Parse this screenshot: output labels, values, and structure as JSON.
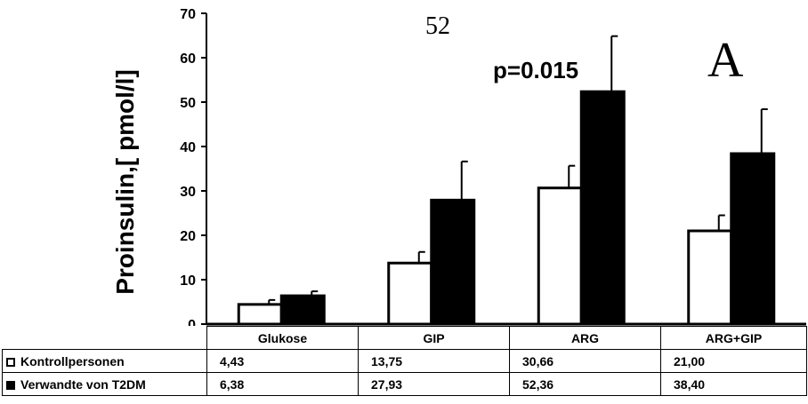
{
  "chart_data": {
    "type": "bar",
    "title": "",
    "ylabel": "Proinsulin,[ pmol/l]",
    "ylim": [
      0,
      70
    ],
    "yticks": [
      "0",
      "10",
      "20",
      "30",
      "40",
      "50",
      "60",
      "70"
    ],
    "categories": [
      "Glukose",
      "GIP",
      "ARG",
      "ARG+GIP"
    ],
    "series": [
      {
        "name": "Kontrollpersonen",
        "color": "#ffffff",
        "values": [
          4.43,
          13.75,
          30.66,
          21.0
        ],
        "errors": [
          1.0,
          2.5,
          5.0,
          3.5
        ],
        "labels": [
          "4,43",
          "13,75",
          "30,66",
          "21,00"
        ]
      },
      {
        "name": "Verwandte von T2DM",
        "color": "#000000",
        "values": [
          6.38,
          27.93,
          52.36,
          38.4
        ],
        "errors": [
          1.0,
          8.7,
          12.5,
          10.0
        ],
        "labels": [
          "6,38",
          "27,93",
          "52,36",
          "38,40"
        ]
      }
    ],
    "annotations": {
      "page_number": "52",
      "pvalue": "p=0.015",
      "panel": "A"
    },
    "legend": "table-below",
    "grid": false
  }
}
